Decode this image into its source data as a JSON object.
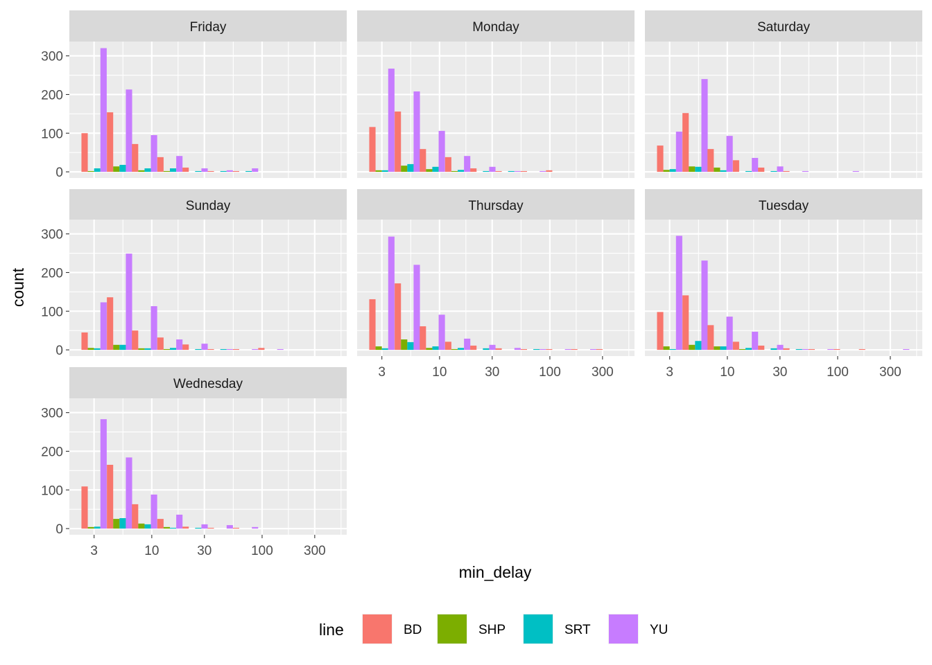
{
  "chart_data": {
    "type": "bar",
    "subtype": "faceted dodged histogram",
    "xlabel": "min_delay",
    "ylabel": "count",
    "x_scale": "log10",
    "x_ticks": [
      3,
      10,
      30,
      100,
      300
    ],
    "x_tick_labels": [
      "3",
      "10",
      "30",
      "100",
      "300"
    ],
    "y_ticks": [
      0,
      100,
      200,
      300
    ],
    "y_tick_labels": [
      "0",
      "100",
      "200",
      "300"
    ],
    "xlim": [
      1.79,
      585
    ],
    "ylim": [
      -16,
      337
    ],
    "grid": true,
    "legend": {
      "title": "line",
      "placement": "bottom",
      "entries": [
        "BD",
        "SHP",
        "SRT",
        "YU"
      ]
    },
    "colors": {
      "BD": "#F8766D",
      "SHP": "#7CAE00",
      "SRT": "#00BFC4",
      "YU": "#C77CFF"
    },
    "bin_centers": [
      3.0,
      5.1,
      8.6,
      14.6,
      24.7,
      41.8,
      70.8,
      120,
      203,
      343
    ],
    "facets": [
      {
        "name": "Friday",
        "series": {
          "BD": [
            100,
            154,
            72,
            38,
            11,
            2,
            2,
            0,
            0,
            0
          ],
          "SHP": [
            2,
            14,
            4,
            2,
            0,
            0,
            0,
            0,
            0,
            0
          ],
          "SRT": [
            9,
            18,
            9,
            9,
            2,
            2,
            2,
            0,
            0,
            0
          ],
          "YU": [
            320,
            213,
            95,
            41,
            9,
            4,
            9,
            0,
            0,
            0
          ]
        }
      },
      {
        "name": "Monday",
        "series": {
          "BD": [
            116,
            156,
            59,
            38,
            9,
            2,
            2,
            4,
            0,
            0
          ],
          "SHP": [
            4,
            16,
            7,
            2,
            0,
            0,
            0,
            0,
            0,
            0
          ],
          "SRT": [
            4,
            20,
            13,
            5,
            2,
            2,
            0,
            0,
            0,
            0
          ],
          "YU": [
            267,
            208,
            106,
            41,
            13,
            2,
            2,
            0,
            0,
            0
          ]
        }
      },
      {
        "name": "Saturday",
        "series": {
          "BD": [
            68,
            152,
            59,
            30,
            11,
            2,
            0,
            0,
            0,
            0
          ],
          "SHP": [
            5,
            14,
            11,
            0,
            0,
            0,
            0,
            0,
            0,
            0
          ],
          "SRT": [
            7,
            13,
            4,
            2,
            2,
            0,
            0,
            0,
            0,
            0
          ],
          "YU": [
            104,
            240,
            93,
            36,
            14,
            2,
            0,
            2,
            0,
            0
          ]
        }
      },
      {
        "name": "Sunday",
        "series": {
          "BD": [
            45,
            136,
            50,
            32,
            14,
            2,
            2,
            5,
            0,
            0
          ],
          "SHP": [
            5,
            13,
            4,
            2,
            0,
            0,
            0,
            0,
            0,
            0
          ],
          "SRT": [
            4,
            13,
            4,
            5,
            2,
            2,
            0,
            0,
            0,
            0
          ],
          "YU": [
            123,
            249,
            113,
            27,
            16,
            2,
            2,
            2,
            0,
            0
          ]
        }
      },
      {
        "name": "Thursday",
        "series": {
          "BD": [
            131,
            172,
            61,
            21,
            11,
            4,
            2,
            2,
            2,
            2
          ],
          "SHP": [
            9,
            27,
            5,
            2,
            0,
            0,
            0,
            0,
            0,
            0
          ],
          "SRT": [
            4,
            20,
            9,
            5,
            4,
            0,
            2,
            0,
            0,
            0
          ],
          "YU": [
            293,
            220,
            91,
            29,
            13,
            5,
            2,
            2,
            2,
            0
          ]
        }
      },
      {
        "name": "Tuesday",
        "series": {
          "BD": [
            98,
            141,
            64,
            21,
            11,
            4,
            2,
            2,
            2,
            0
          ],
          "SHP": [
            9,
            13,
            9,
            2,
            0,
            0,
            0,
            0,
            0,
            0
          ],
          "SRT": [
            2,
            23,
            9,
            5,
            4,
            2,
            0,
            0,
            0,
            0
          ],
          "YU": [
            295,
            231,
            86,
            47,
            13,
            2,
            2,
            0,
            0,
            2
          ]
        }
      },
      {
        "name": "Wednesday",
        "series": {
          "BD": [
            109,
            165,
            63,
            25,
            5,
            2,
            2,
            0,
            0,
            0
          ],
          "SHP": [
            4,
            25,
            13,
            4,
            0,
            0,
            0,
            0,
            0,
            0
          ],
          "SRT": [
            5,
            27,
            11,
            2,
            2,
            0,
            0,
            0,
            0,
            0
          ],
          "YU": [
            283,
            184,
            88,
            36,
            11,
            9,
            4,
            0,
            0,
            0
          ]
        }
      }
    ]
  }
}
